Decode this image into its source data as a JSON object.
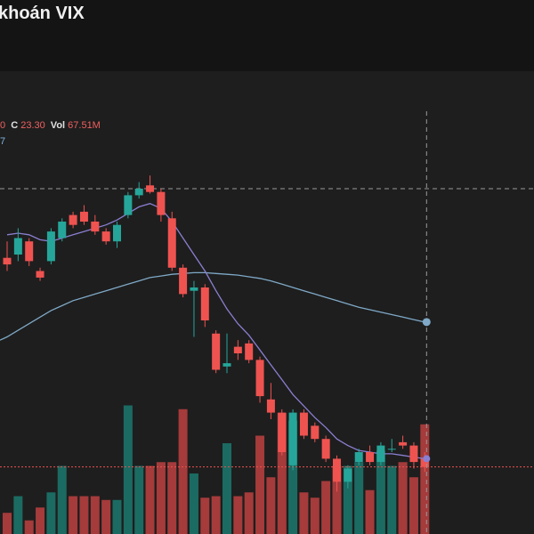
{
  "header": {
    "title": "khoán VIX"
  },
  "legend": {
    "o_fragment": "0",
    "c_label": "C",
    "c_value": "23.30",
    "vol_label": "Vol",
    "vol_value": "67.51M",
    "ma_fragment": "7"
  },
  "colors": {
    "background": "#1e1e1e",
    "header": "#141414",
    "up": "#26a69a",
    "down": "#ef5350",
    "volume_up": "#1b6b62",
    "volume_down": "#a53b3b",
    "ma_short": "#8a7fd1",
    "ma_long": "#7fa9c7",
    "crosshair": "#9a9a9a",
    "price_line": "#ef5350"
  },
  "chart_data": {
    "type": "candlestick",
    "candles": [
      {
        "o": 36,
        "h": 37,
        "l": 35.2,
        "c": 35.6
      },
      {
        "o": 36.2,
        "h": 37.8,
        "l": 35.8,
        "c": 37.2
      },
      {
        "o": 37,
        "h": 37.2,
        "l": 35.5,
        "c": 35.8
      },
      {
        "o": 35.2,
        "h": 35.4,
        "l": 34.6,
        "c": 34.8
      },
      {
        "o": 35.8,
        "h": 37.8,
        "l": 35.6,
        "c": 37.6
      },
      {
        "o": 37.2,
        "h": 38.4,
        "l": 37,
        "c": 38.2
      },
      {
        "o": 38.6,
        "h": 38.8,
        "l": 37.8,
        "c": 38.0
      },
      {
        "o": 38.8,
        "h": 39.2,
        "l": 38,
        "c": 38.2
      },
      {
        "o": 38.2,
        "h": 38.6,
        "l": 37.4,
        "c": 37.6
      },
      {
        "o": 37.6,
        "h": 37.8,
        "l": 36.8,
        "c": 37.0
      },
      {
        "o": 37,
        "h": 38.2,
        "l": 36.6,
        "c": 38.0
      },
      {
        "o": 38.6,
        "h": 40,
        "l": 38.4,
        "c": 39.8
      },
      {
        "o": 39.8,
        "h": 40.6,
        "l": 39.6,
        "c": 40.2
      },
      {
        "o": 40.4,
        "h": 41,
        "l": 39.9,
        "c": 40.0
      },
      {
        "o": 40.0,
        "h": 40.2,
        "l": 38.2,
        "c": 38.6
      },
      {
        "o": 38.4,
        "h": 38.8,
        "l": 35.2,
        "c": 35.4
      },
      {
        "o": 35.4,
        "h": 35.6,
        "l": 33.6,
        "c": 33.8
      },
      {
        "o": 34.0,
        "h": 34.6,
        "l": 31.2,
        "c": 34.2
      },
      {
        "o": 34.2,
        "h": 34.4,
        "l": 31.8,
        "c": 32.2
      },
      {
        "o": 31.4,
        "h": 31.6,
        "l": 29.0,
        "c": 29.2
      },
      {
        "o": 29.4,
        "h": 31.4,
        "l": 29.0,
        "c": 29.6
      },
      {
        "o": 30.6,
        "h": 31.0,
        "l": 29.8,
        "c": 30.2
      },
      {
        "o": 30.8,
        "h": 31.0,
        "l": 29.6,
        "c": 29.8
      },
      {
        "o": 29.8,
        "h": 30.0,
        "l": 27.2,
        "c": 27.6
      },
      {
        "o": 27.4,
        "h": 28.4,
        "l": 26.2,
        "c": 26.6
      },
      {
        "o": 26.6,
        "h": 26.8,
        "l": 24.0,
        "c": 24.2
      },
      {
        "o": 23.4,
        "h": 26.8,
        "l": 23.1,
        "c": 26.6
      },
      {
        "o": 26.6,
        "h": 26.8,
        "l": 25.0,
        "c": 25.2
      },
      {
        "o": 25.8,
        "h": 26.0,
        "l": 24.8,
        "c": 25.0
      },
      {
        "o": 25.0,
        "h": 25.2,
        "l": 23.6,
        "c": 23.8
      },
      {
        "o": 23.8,
        "h": 24.0,
        "l": 21.8,
        "c": 22.4
      },
      {
        "o": 22.4,
        "h": 23.4,
        "l": 22.0,
        "c": 23.2
      },
      {
        "o": 23.6,
        "h": 24.4,
        "l": 23.4,
        "c": 24.2
      },
      {
        "o": 24.2,
        "h": 24.6,
        "l": 23.4,
        "c": 23.6
      },
      {
        "o": 23.6,
        "h": 24.8,
        "l": 23.4,
        "c": 24.6
      },
      {
        "o": 24.4,
        "h": 25.0,
        "l": 24.2,
        "c": 24.4
      },
      {
        "o": 24.8,
        "h": 25.2,
        "l": 24.4,
        "c": 24.6
      },
      {
        "o": 24.6,
        "h": 24.8,
        "l": 23.2,
        "c": 23.6
      },
      {
        "o": 23.8,
        "h": 24.2,
        "l": 23.0,
        "c": 23.3
      }
    ],
    "volumes": [
      0.28,
      0.5,
      0.18,
      0.35,
      0.55,
      0.9,
      0.5,
      0.5,
      0.5,
      0.45,
      0.45,
      1.7,
      0.9,
      0.9,
      0.95,
      0.95,
      1.65,
      0.8,
      0.48,
      0.5,
      1.2,
      0.5,
      0.55,
      1.3,
      0.75,
      1.6,
      1.5,
      0.55,
      0.48,
      0.7,
      0.9,
      0.9,
      0.95,
      0.58,
      1.1,
      0.9,
      0.95,
      0.75,
      1.45
    ],
    "ma_short": [
      37.4,
      37.5,
      37.4,
      37.1,
      37.0,
      37.2,
      37.4,
      37.6,
      37.8,
      38.0,
      38.3,
      38.7,
      39.1,
      39.3,
      39.0,
      38.2,
      37.2,
      36.2,
      35.2,
      34.0,
      32.9,
      32.0,
      31.3,
      30.4,
      29.5,
      28.6,
      27.7,
      27.0,
      26.3,
      25.7,
      25.0,
      24.6,
      24.3,
      24.2,
      24.1,
      24.1,
      24.0,
      23.9,
      23.8
    ],
    "ma_long": [
      31.2,
      31.6,
      32.0,
      32.4,
      32.8,
      33.1,
      33.4,
      33.6,
      33.8,
      34.0,
      34.2,
      34.4,
      34.6,
      34.8,
      34.9,
      35.0,
      35.05,
      35.1,
      35.1,
      35.05,
      35.0,
      34.95,
      34.85,
      34.75,
      34.6,
      34.4,
      34.2,
      34.0,
      33.8,
      33.6,
      33.4,
      33.2,
      33.0,
      32.85,
      32.7,
      32.55,
      32.4,
      32.25,
      32.1
    ],
    "price_line": 23.3,
    "crosshair_index": 38
  }
}
